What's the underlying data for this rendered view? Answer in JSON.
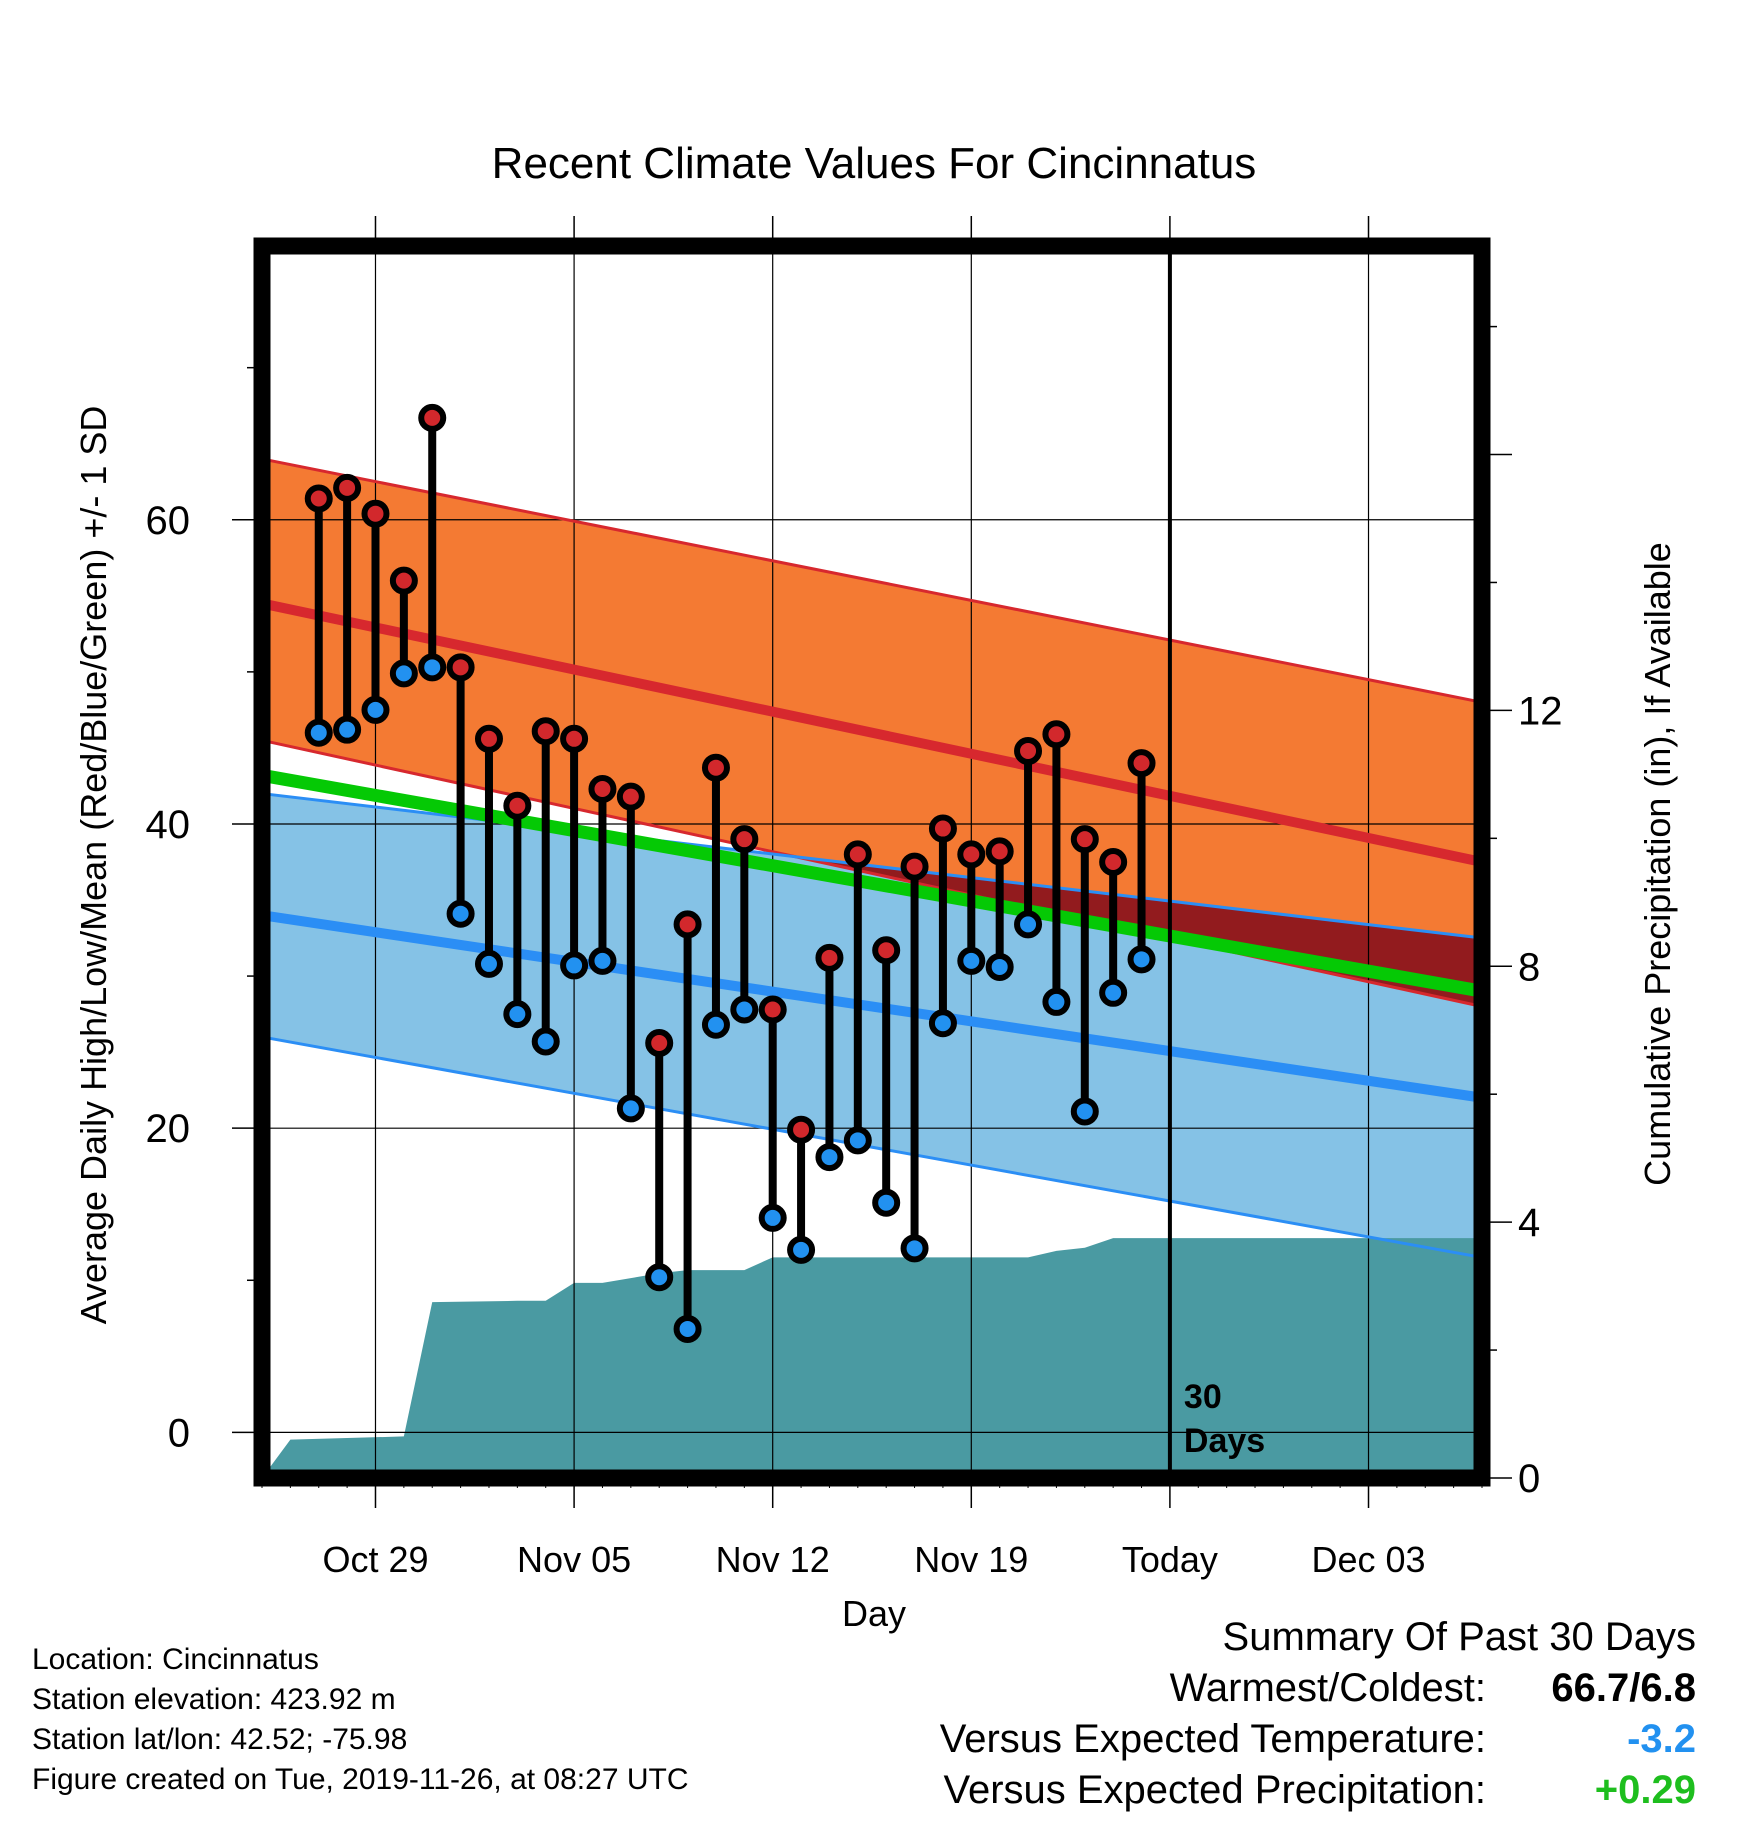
{
  "chart_data": {
    "type": "line",
    "title": "Recent Climate Values For Cincinnatus",
    "xlabel": "Day",
    "ylabel_left": "Average Daily High/Low/Mean (Red/Blue/Green) +/- 1 SD",
    "ylabel_right": "Cumulative Precipitation (in), If Available",
    "x_range": [
      "2019-10-25",
      "2019-12-07"
    ],
    "ylim_left": [
      -3,
      78
    ],
    "ylim_right": [
      0,
      19.26
    ],
    "grid": true,
    "x_ticks": [
      {
        "date": "2019-10-29",
        "label": "Oct 29"
      },
      {
        "date": "2019-11-05",
        "label": "Nov 05"
      },
      {
        "date": "2019-11-12",
        "label": "Nov 12"
      },
      {
        "date": "2019-11-19",
        "label": "Nov 19"
      },
      {
        "date": "2019-11-26",
        "label": "Today"
      },
      {
        "date": "2019-12-03",
        "label": "Dec 03"
      }
    ],
    "y_ticks_left": [
      0,
      20,
      40,
      60
    ],
    "y_ticks_right": [
      0,
      4,
      8,
      12
    ],
    "today": "2019-11-26",
    "today_note": [
      "30",
      "Days"
    ],
    "normals": {
      "high_mean": [
        54.5,
        37.5
      ],
      "high_upper": [
        64.0,
        48.0
      ],
      "high_lower": [
        45.5,
        28.0
      ],
      "low_mean": [
        34.0,
        22.0
      ],
      "low_upper": [
        42.0,
        32.5
      ],
      "low_lower": [
        26.0,
        11.5
      ],
      "avg_mean": [
        43.2,
        29.0
      ]
    },
    "daily": {
      "dates": [
        "2019-10-27",
        "2019-10-28",
        "2019-10-29",
        "2019-10-30",
        "2019-10-31",
        "2019-11-01",
        "2019-11-02",
        "2019-11-03",
        "2019-11-04",
        "2019-11-05",
        "2019-11-06",
        "2019-11-07",
        "2019-11-08",
        "2019-11-09",
        "2019-11-10",
        "2019-11-11",
        "2019-11-12",
        "2019-11-13",
        "2019-11-14",
        "2019-11-15",
        "2019-11-16",
        "2019-11-17",
        "2019-11-18",
        "2019-11-19",
        "2019-11-20",
        "2019-11-21",
        "2019-11-22",
        "2019-11-23",
        "2019-11-24",
        "2019-11-25"
      ],
      "highs": [
        61.4,
        62.1,
        60.4,
        56.0,
        66.7,
        50.3,
        45.6,
        41.2,
        46.1,
        45.6,
        42.3,
        41.8,
        25.6,
        33.4,
        43.7,
        39.0,
        27.8,
        19.9,
        31.2,
        38.0,
        31.7,
        37.2,
        39.7,
        38.0,
        38.2,
        44.8,
        45.9,
        39.0,
        37.5,
        44.0
      ],
      "lows": [
        46.0,
        46.2,
        47.5,
        49.9,
        50.3,
        34.1,
        30.8,
        27.5,
        25.7,
        30.7,
        31.0,
        21.3,
        10.2,
        6.8,
        26.8,
        27.8,
        14.1,
        12.0,
        18.1,
        19.2,
        15.1,
        12.1,
        26.9,
        31.0,
        30.6,
        33.4,
        28.3,
        21.1,
        28.9,
        31.1
      ]
    },
    "precip_cumulative": [
      {
        "date": "2019-10-25",
        "value": 0.0
      },
      {
        "date": "2019-10-26",
        "value": 0.6
      },
      {
        "date": "2019-10-30",
        "value": 0.65
      },
      {
        "date": "2019-10-31",
        "value": 2.75
      },
      {
        "date": "2019-11-03",
        "value": 2.77
      },
      {
        "date": "2019-11-04",
        "value": 2.77
      },
      {
        "date": "2019-11-05",
        "value": 3.05
      },
      {
        "date": "2019-11-06",
        "value": 3.05
      },
      {
        "date": "2019-11-08",
        "value": 3.2
      },
      {
        "date": "2019-11-09",
        "value": 3.25
      },
      {
        "date": "2019-11-11",
        "value": 3.25
      },
      {
        "date": "2019-11-12",
        "value": 3.45
      },
      {
        "date": "2019-11-21",
        "value": 3.45
      },
      {
        "date": "2019-11-22",
        "value": 3.55
      },
      {
        "date": "2019-11-23",
        "value": 3.6
      },
      {
        "date": "2019-11-24",
        "value": 3.75
      },
      {
        "date": "2019-12-07",
        "value": 3.75
      }
    ],
    "colors": {
      "high_band": "#f47a33",
      "high_line": "#d7282e",
      "low_band": "#85c2e6",
      "low_line": "#2b8ef5",
      "overlap_band": "#921b1e",
      "mean_line": "#05c905",
      "precip": "#4a9aa2",
      "high_dot": "#d2282c",
      "low_dot": "#2291f0",
      "departure_temp": "#2291f0",
      "departure_precip": "#1ebe1e"
    }
  },
  "footer": {
    "location": "Location: Cincinnatus",
    "elevation": "Station elevation: 423.92 m",
    "latlon": "Station lat/lon: 42.52; -75.98",
    "created": "Figure created on Tue, 2019-11-26, at 08:27 UTC"
  },
  "summary": {
    "title": "Summary Of Past 30 Days",
    "warmest_label": "Warmest/Coldest:",
    "warmest_value": "66.7/6.8",
    "temp_label": "Versus Expected Temperature:",
    "temp_value": "-3.2",
    "precip_label": "Versus Expected Precipitation:",
    "precip_value": "+0.29"
  }
}
